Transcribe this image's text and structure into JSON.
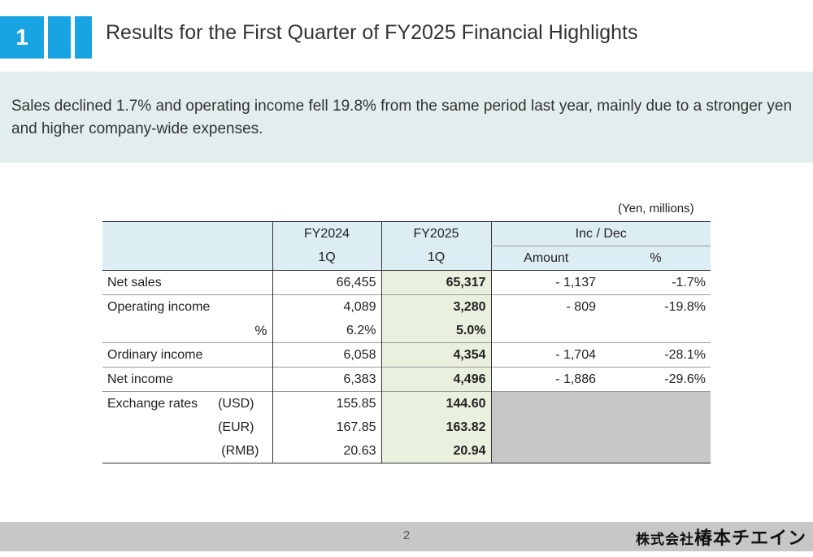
{
  "header": {
    "section_number": "1",
    "title": "Results for the First Quarter of FY2025 Financial Highlights",
    "accent_color": "#18a4e3"
  },
  "summary": {
    "text": "Sales declined 1.7% and operating income fell 19.8% from the same period last year, mainly due to a stronger yen and higher company-wide expenses."
  },
  "table": {
    "unit": "(Yen, millions)",
    "headers": {
      "fy2024": "FY2024",
      "fy2025": "FY2025",
      "incdec": "Inc / Dec",
      "q_2024": "1Q",
      "q_2025": "1Q",
      "amount": "Amount",
      "pct": "%"
    },
    "rows": {
      "net_sales": {
        "label": "Net sales",
        "fy2024": "66,455",
        "fy2025": "65,317",
        "amount": "- 1,137",
        "pct": "-1.7%"
      },
      "op_income": {
        "label": "Operating income",
        "fy2024": "4,089",
        "fy2025": "3,280",
        "amount": "- 809",
        "pct": "-19.8%"
      },
      "op_margin": {
        "label": "%",
        "fy2024": "6.2%",
        "fy2025": "5.0%"
      },
      "ord_income": {
        "label": "Ordinary income",
        "fy2024": "6,058",
        "fy2025": "4,354",
        "amount": "- 1,704",
        "pct": "-28.1%"
      },
      "net_income": {
        "label": "Net income",
        "fy2024": "6,383",
        "fy2025": "4,496",
        "amount": "- 1,886",
        "pct": "-29.6%"
      },
      "fx_usd": {
        "label": "Exchange rates",
        "currency": "(USD)",
        "fy2024": "155.85",
        "fy2025": "144.60"
      },
      "fx_eur": {
        "currency": "(EUR)",
        "fy2024": "167.85",
        "fy2025": "163.82"
      },
      "fx_rmb": {
        "currency": "(RMB)",
        "fy2024": "20.63",
        "fy2025": "20.94"
      }
    }
  },
  "footer": {
    "page_number": "2",
    "company_prefix": "株式会社",
    "company_name": "椿本チエイン"
  }
}
